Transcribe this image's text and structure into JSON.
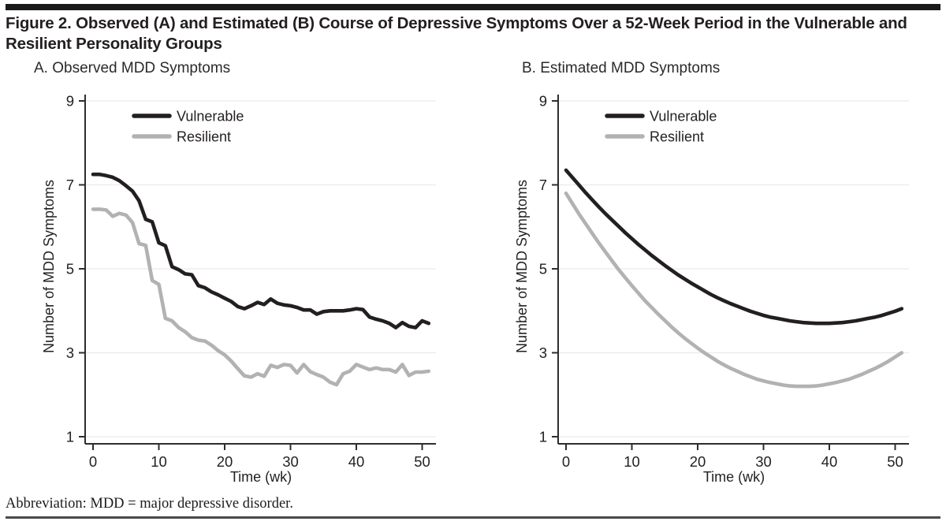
{
  "page": {
    "title_line1": "Figure 2. Observed (A) and Estimated (B) Course of Depressive Symptoms Over a 52-Week Period in the Vulnerable and",
    "title_line2": "Resilient Personality Groups",
    "footnote": "Abbreviation: MDD = major depressive disorder."
  },
  "colors": {
    "vulnerable": "#231f20",
    "resilient": "#b2b2b2",
    "grid": "#ebebeb",
    "axis": "#2d2d2d",
    "top_bar": "#1a1a1a",
    "bottom_rule": "#4a4a4a"
  },
  "chart_data": [
    {
      "type": "line",
      "panel_label": "A. Observed MDD Symptoms",
      "xlabel": "Time (wk)",
      "ylabel": "Number of MDD Symptoms",
      "x_ticks": [
        0,
        10,
        20,
        30,
        40,
        50
      ],
      "y_ticks": [
        9,
        7,
        5,
        3,
        1
      ],
      "xlim": [
        0,
        52
      ],
      "ylim": [
        1,
        9
      ],
      "grid": "horizontal",
      "legend_position": "top-left-inside",
      "x": [
        0,
        1,
        2,
        3,
        4,
        5,
        6,
        7,
        8,
        9,
        10,
        11,
        12,
        13,
        14,
        15,
        16,
        17,
        18,
        19,
        20,
        21,
        22,
        23,
        24,
        25,
        26,
        27,
        28,
        29,
        30,
        31,
        32,
        33,
        34,
        35,
        36,
        37,
        38,
        39,
        40,
        41,
        42,
        43,
        44,
        45,
        46,
        47,
        48,
        49,
        50,
        51
      ],
      "series": [
        {
          "name": "Vulnerable",
          "color_key": "vulnerable",
          "values": [
            7.25,
            7.25,
            7.22,
            7.18,
            7.1,
            6.98,
            6.85,
            6.62,
            6.18,
            6.12,
            5.62,
            5.55,
            5.05,
            4.98,
            4.88,
            4.86,
            4.6,
            4.55,
            4.45,
            4.38,
            4.3,
            4.22,
            4.1,
            4.05,
            4.12,
            4.2,
            4.15,
            4.28,
            4.18,
            4.14,
            4.12,
            4.08,
            4.02,
            4.02,
            3.92,
            3.98,
            4.0,
            4.0,
            4.0,
            4.02,
            4.05,
            4.03,
            3.85,
            3.8,
            3.76,
            3.7,
            3.6,
            3.72,
            3.63,
            3.6,
            3.76,
            3.7
          ]
        },
        {
          "name": "Resilient",
          "color_key": "resilient",
          "values": [
            6.42,
            6.42,
            6.4,
            6.25,
            6.32,
            6.28,
            6.1,
            5.6,
            5.56,
            4.72,
            4.63,
            3.82,
            3.76,
            3.6,
            3.5,
            3.36,
            3.3,
            3.28,
            3.18,
            3.05,
            2.95,
            2.8,
            2.62,
            2.45,
            2.42,
            2.5,
            2.44,
            2.7,
            2.65,
            2.72,
            2.7,
            2.52,
            2.72,
            2.55,
            2.48,
            2.42,
            2.3,
            2.24,
            2.5,
            2.56,
            2.72,
            2.66,
            2.6,
            2.64,
            2.6,
            2.6,
            2.54,
            2.72,
            2.46,
            2.54,
            2.54,
            2.56
          ]
        }
      ]
    },
    {
      "type": "line",
      "panel_label": "B. Estimated MDD Symptoms",
      "xlabel": "Time (wk)",
      "ylabel": "Number of MDD Symptoms",
      "x_ticks": [
        0,
        10,
        20,
        30,
        40,
        50
      ],
      "y_ticks": [
        9,
        7,
        5,
        3,
        1
      ],
      "xlim": [
        0,
        52
      ],
      "ylim": [
        1,
        9
      ],
      "grid": "horizontal",
      "legend_position": "top-left-inside",
      "x": [
        0,
        1,
        2,
        3,
        4,
        5,
        6,
        7,
        8,
        9,
        10,
        11,
        12,
        13,
        14,
        15,
        16,
        17,
        18,
        19,
        20,
        21,
        22,
        23,
        24,
        25,
        26,
        27,
        28,
        29,
        30,
        31,
        32,
        33,
        34,
        35,
        36,
        37,
        38,
        39,
        40,
        41,
        42,
        43,
        44,
        45,
        46,
        47,
        48,
        49,
        50,
        51
      ],
      "series": [
        {
          "name": "Vulnerable",
          "color_key": "vulnerable",
          "values": [
            7.35,
            7.17,
            6.99,
            6.81,
            6.64,
            6.47,
            6.31,
            6.16,
            6.01,
            5.86,
            5.72,
            5.58,
            5.45,
            5.32,
            5.2,
            5.08,
            4.97,
            4.86,
            4.76,
            4.66,
            4.57,
            4.48,
            4.39,
            4.31,
            4.24,
            4.17,
            4.11,
            4.05,
            3.99,
            3.94,
            3.89,
            3.85,
            3.82,
            3.79,
            3.76,
            3.74,
            3.72,
            3.71,
            3.7,
            3.7,
            3.7,
            3.71,
            3.72,
            3.74,
            3.76,
            3.79,
            3.82,
            3.85,
            3.89,
            3.94,
            3.99,
            4.05
          ]
        },
        {
          "name": "Resilient",
          "color_key": "resilient",
          "values": [
            6.8,
            6.55,
            6.3,
            6.07,
            5.84,
            5.61,
            5.4,
            5.19,
            4.98,
            4.79,
            4.6,
            4.42,
            4.24,
            4.08,
            3.92,
            3.77,
            3.62,
            3.48,
            3.35,
            3.23,
            3.11,
            3.0,
            2.9,
            2.8,
            2.71,
            2.63,
            2.56,
            2.49,
            2.43,
            2.37,
            2.33,
            2.29,
            2.26,
            2.23,
            2.21,
            2.2,
            2.2,
            2.2,
            2.21,
            2.23,
            2.26,
            2.29,
            2.33,
            2.37,
            2.43,
            2.49,
            2.56,
            2.63,
            2.71,
            2.8,
            2.9,
            3.0
          ]
        }
      ]
    }
  ]
}
